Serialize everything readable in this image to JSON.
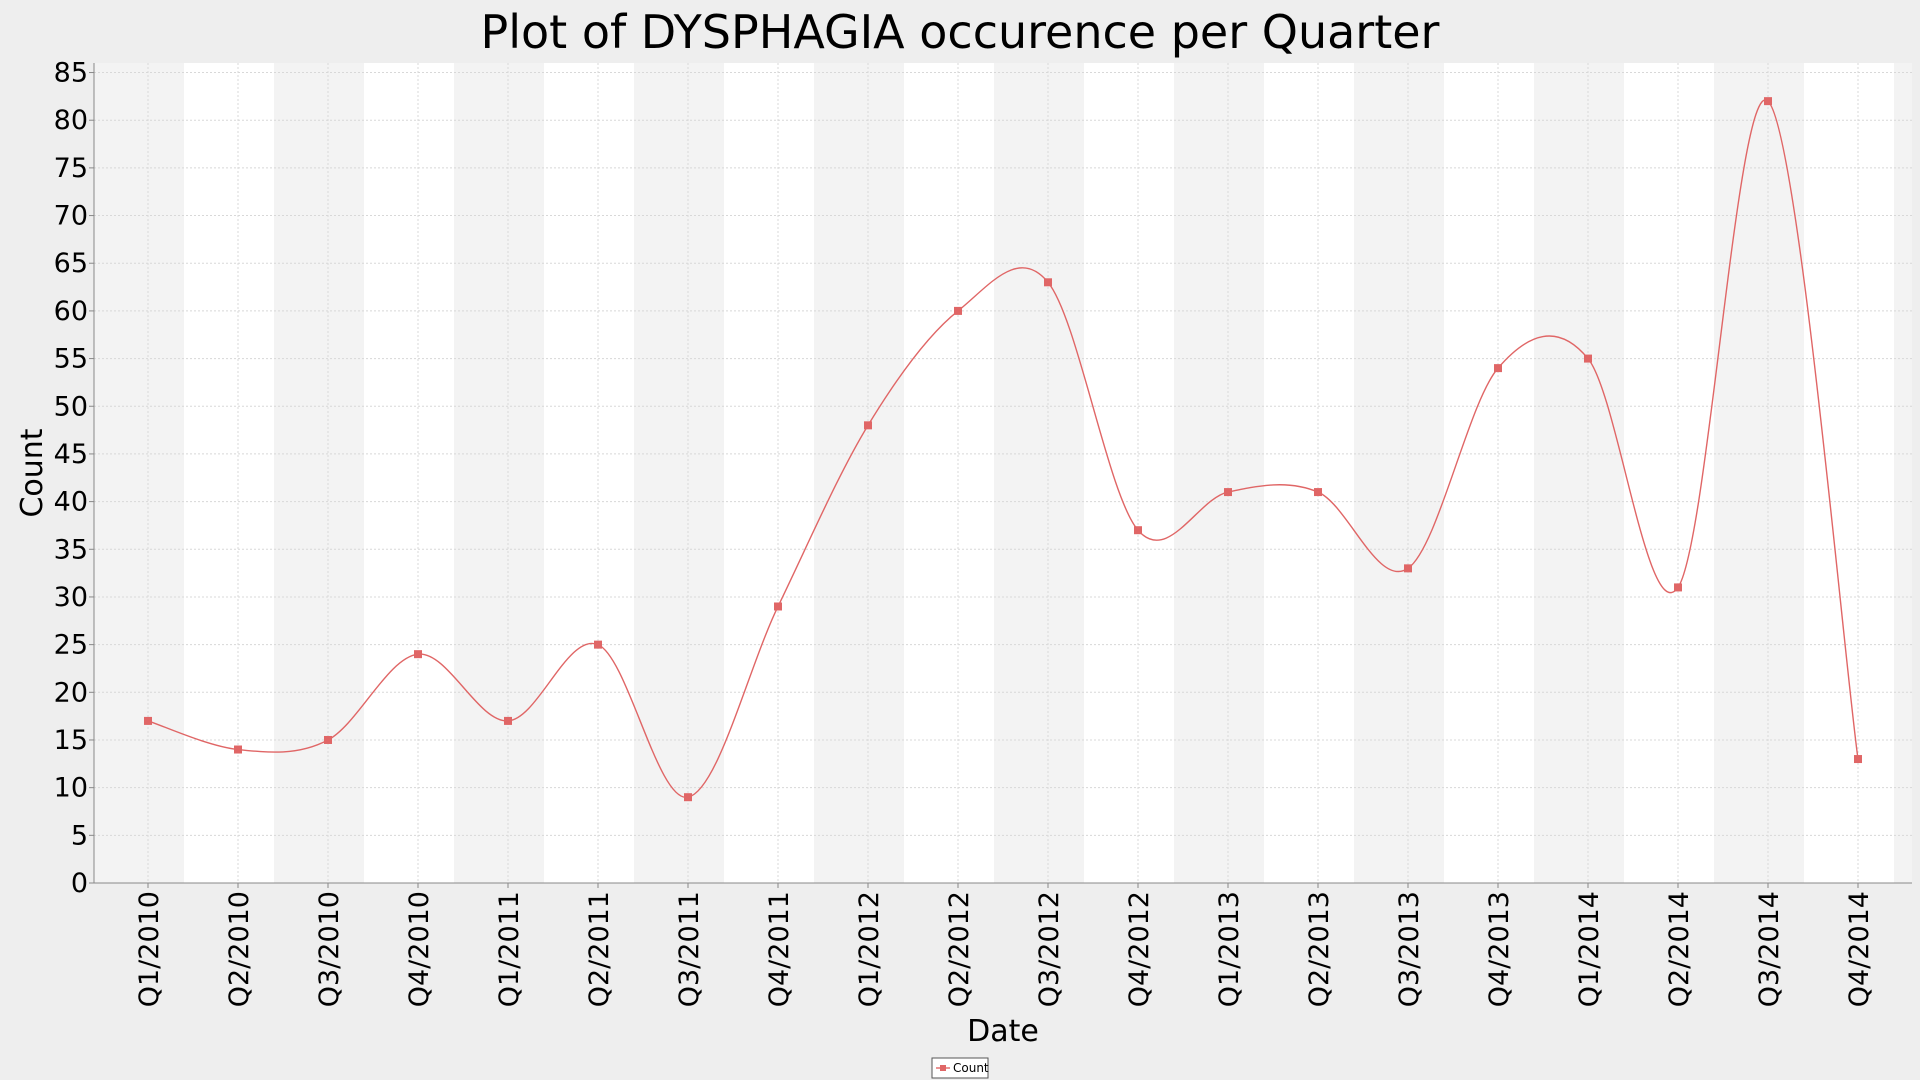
{
  "chart_data": {
    "type": "line",
    "title": "Plot of DYSPHAGIA occurence per Quarter",
    "xlabel": "Date",
    "ylabel": "Count",
    "categories": [
      "Q1/2010",
      "Q2/2010",
      "Q3/2010",
      "Q4/2010",
      "Q1/2011",
      "Q2/2011",
      "Q3/2011",
      "Q4/2011",
      "Q1/2012",
      "Q2/2012",
      "Q3/2012",
      "Q4/2012",
      "Q1/2013",
      "Q2/2013",
      "Q3/2013",
      "Q4/2013",
      "Q1/2014",
      "Q2/2014",
      "Q3/2014",
      "Q4/2014"
    ],
    "series": [
      {
        "name": "Count",
        "values": [
          17,
          14,
          15,
          24,
          17,
          25,
          9,
          29,
          48,
          60,
          63,
          37,
          41,
          41,
          33,
          54,
          55,
          31,
          82,
          13
        ]
      }
    ],
    "ylim": [
      0,
      86
    ],
    "yticks": [
      0,
      5,
      10,
      15,
      20,
      25,
      30,
      35,
      40,
      45,
      50,
      55,
      60,
      65,
      70,
      75,
      80,
      85
    ],
    "grid": true,
    "smooth": true,
    "legend": "bottom-center",
    "colors": {
      "series": "#e06666",
      "band": "#f3f3f3",
      "plot_bg": "#ffffff",
      "grid": "#d8d8d8",
      "page_bg": "#eeeeee"
    }
  }
}
